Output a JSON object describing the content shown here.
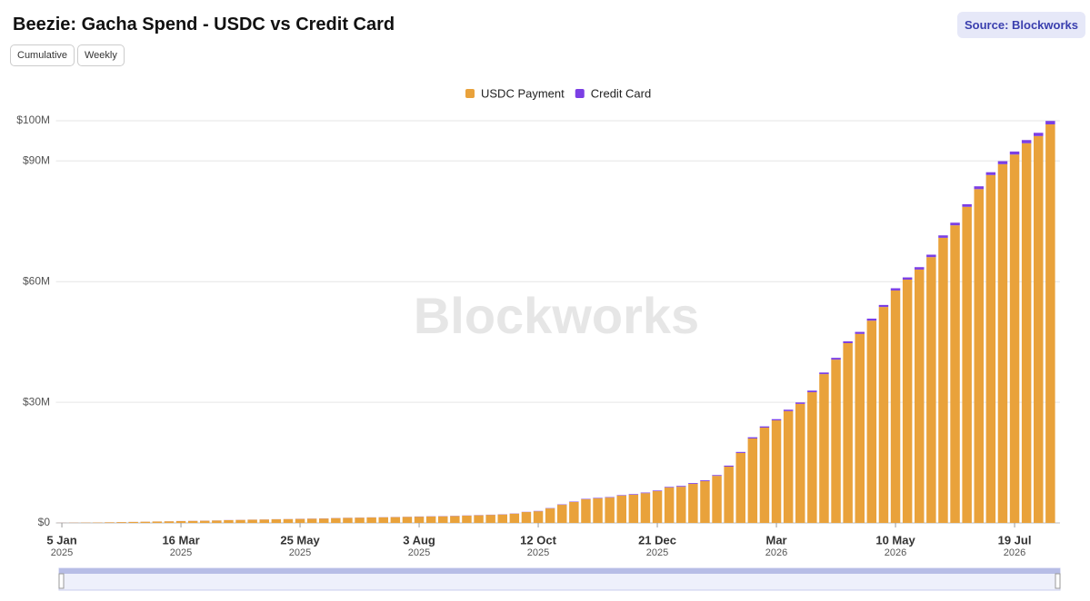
{
  "chart_data": {
    "type": "stacked_bar",
    "title": "Beezie: Gacha Spend - USDC vs Credit Card",
    "source": "Source: Blockworks",
    "buttons": [
      "Cumulative",
      "Weekly"
    ],
    "watermark": "Blockworks",
    "legend": "top",
    "grid": true,
    "categories": [
      "5 Jan",
      null,
      null,
      null,
      null,
      null,
      null,
      null,
      null,
      null,
      "16 Mar",
      null,
      null,
      null,
      null,
      null,
      null,
      null,
      null,
      null,
      "25 May",
      null,
      null,
      null,
      null,
      null,
      null,
      null,
      null,
      null,
      "3 Aug",
      null,
      null,
      null,
      null,
      null,
      null,
      null,
      null,
      null,
      "12 Oct",
      null,
      null,
      null,
      null,
      null,
      null,
      null,
      null,
      null,
      "21 Dec",
      null,
      null,
      null,
      null,
      null,
      null,
      null,
      null,
      null,
      "Mar",
      null,
      null,
      null,
      null,
      null,
      null,
      null,
      null,
      null,
      "10 May",
      null,
      null,
      null,
      null,
      null,
      null,
      null,
      null,
      null,
      "19 Jul",
      null,
      null,
      null
    ],
    "category_years": [
      "2025",
      null,
      null,
      null,
      null,
      null,
      null,
      null,
      null,
      null,
      "2025",
      null,
      null,
      null,
      null,
      null,
      null,
      null,
      null,
      null,
      "2025",
      null,
      null,
      null,
      null,
      null,
      null,
      null,
      null,
      null,
      "2025",
      null,
      null,
      null,
      null,
      null,
      null,
      null,
      null,
      null,
      "2025",
      null,
      null,
      null,
      null,
      null,
      null,
      null,
      null,
      null,
      "2025",
      null,
      null,
      null,
      null,
      null,
      null,
      null,
      null,
      null,
      "2026",
      null,
      null,
      null,
      null,
      null,
      null,
      null,
      null,
      null,
      "2026",
      null,
      null,
      null,
      null,
      null,
      null,
      null,
      null,
      null,
      "2026",
      null,
      null,
      null
    ],
    "series": [
      {
        "name": "USDC Payment",
        "color": "#e9a23b",
        "values": [
          0.02,
          0.05,
          0.08,
          0.1,
          0.15,
          0.2,
          0.25,
          0.3,
          0.35,
          0.4,
          0.45,
          0.5,
          0.55,
          0.6,
          0.7,
          0.75,
          0.8,
          0.85,
          0.9,
          0.95,
          1.0,
          1.05,
          1.1,
          1.2,
          1.25,
          1.3,
          1.35,
          1.4,
          1.45,
          1.5,
          1.55,
          1.6,
          1.65,
          1.7,
          1.8,
          1.9,
          2.0,
          2.1,
          2.3,
          2.7,
          2.9,
          3.6,
          4.5,
          5.2,
          5.9,
          6.1,
          6.3,
          6.8,
          7.0,
          7.4,
          7.9,
          8.8,
          9.0,
          9.7,
          10.4,
          11.7,
          14.0,
          17.4,
          21.0,
          23.7,
          25.5,
          27.8,
          29.6,
          32.5,
          37.0,
          40.6,
          44.7,
          47.0,
          50.3,
          53.7,
          57.8,
          60.5,
          63.0,
          66.1,
          70.9,
          74.0,
          78.6,
          83.0,
          86.5,
          89.2,
          91.6,
          94.4,
          96.2,
          99.1
        ]
      },
      {
        "name": "Credit Card",
        "color": "#7b3fe4",
        "values": [
          0.01,
          0.01,
          0.01,
          0.01,
          0.01,
          0.01,
          0.01,
          0.01,
          0.01,
          0.01,
          0.02,
          0.02,
          0.02,
          0.02,
          0.02,
          0.02,
          0.02,
          0.02,
          0.02,
          0.02,
          0.03,
          0.03,
          0.03,
          0.03,
          0.03,
          0.03,
          0.03,
          0.03,
          0.03,
          0.03,
          0.05,
          0.05,
          0.05,
          0.05,
          0.05,
          0.05,
          0.05,
          0.05,
          0.05,
          0.05,
          0.08,
          0.08,
          0.1,
          0.1,
          0.1,
          0.12,
          0.12,
          0.12,
          0.15,
          0.15,
          0.15,
          0.15,
          0.2,
          0.2,
          0.2,
          0.2,
          0.25,
          0.25,
          0.3,
          0.3,
          0.3,
          0.35,
          0.35,
          0.4,
          0.4,
          0.45,
          0.45,
          0.5,
          0.5,
          0.5,
          0.55,
          0.55,
          0.6,
          0.6,
          0.6,
          0.65,
          0.65,
          0.7,
          0.7,
          0.75,
          0.75,
          0.8,
          0.8,
          0.85
        ]
      }
    ],
    "ylim": [
      0,
      100
    ],
    "yticks": [
      {
        "value": 0,
        "label": "$0"
      },
      {
        "value": 30,
        "label": "$30M"
      },
      {
        "value": 60,
        "label": "$60M"
      },
      {
        "value": 90,
        "label": "$90M"
      },
      {
        "value": 100,
        "label": "$100M"
      }
    ]
  }
}
